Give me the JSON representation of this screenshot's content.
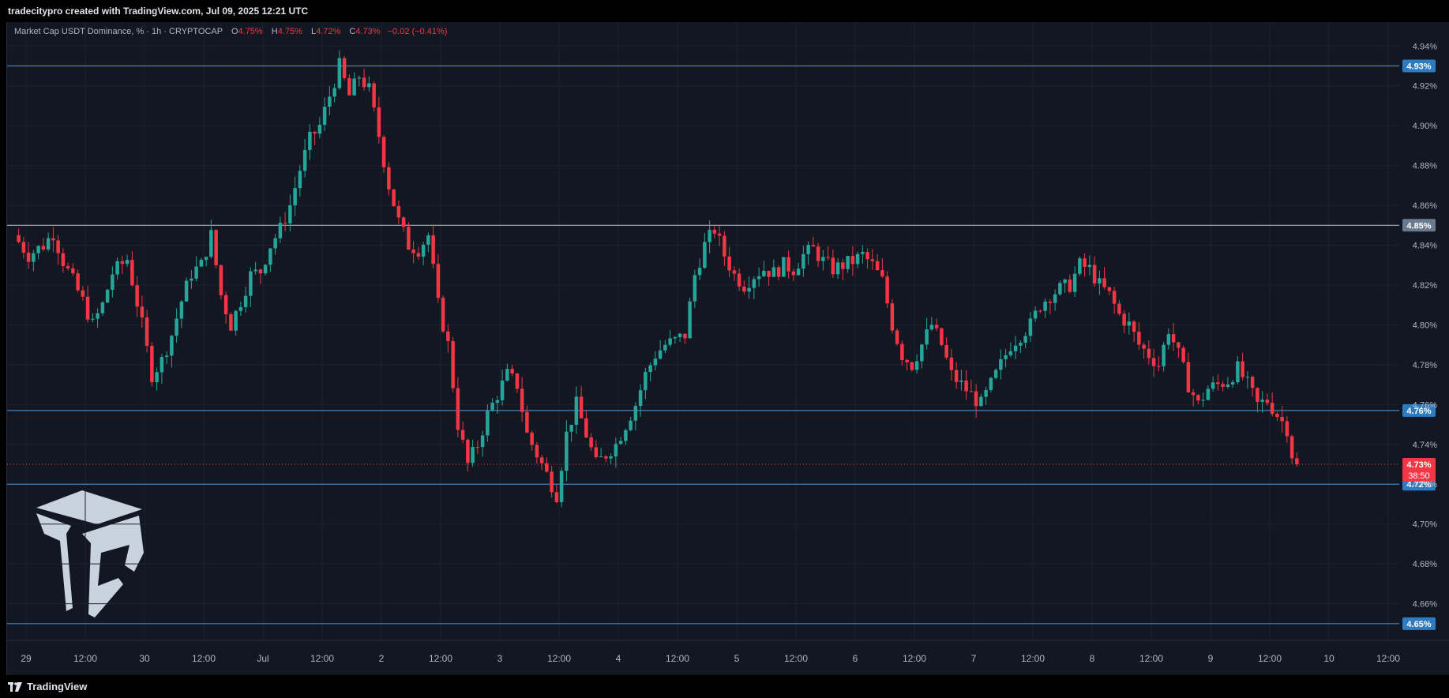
{
  "header": {
    "attribution": "tradecitypro created with TradingView.com, Jul 09, 2025 12:21 UTC"
  },
  "legend": {
    "title": "Market Cap USDT Dominance, % · 1h · CRYPTOCAP",
    "open_label": "O",
    "open": "4.75%",
    "high_label": "H",
    "high": "4.75%",
    "low_label": "L",
    "low": "4.72%",
    "close_label": "C",
    "close": "4.73%",
    "change": "−0.02 (−0.41%)"
  },
  "footer": {
    "brand": "TradingView"
  },
  "colors": {
    "background": "#131722",
    "up": "#26a69a",
    "down": "#f23645",
    "level_line": "#2962ff",
    "level_blue": "#3d84c6",
    "level_white": "#b2b5be",
    "text": "#b2b5be"
  },
  "chart_data": {
    "type": "candlestick",
    "ylim": [
      4.642,
      4.952
    ],
    "y_ticks": [
      "4.94%",
      "4.92%",
      "4.90%",
      "4.88%",
      "4.86%",
      "4.84%",
      "4.82%",
      "4.80%",
      "4.78%",
      "4.76%",
      "4.74%",
      "4.72%",
      "4.70%",
      "4.68%",
      "4.66%"
    ],
    "y_tick_values": [
      4.94,
      4.92,
      4.9,
      4.88,
      4.86,
      4.84,
      4.82,
      4.8,
      4.78,
      4.76,
      4.74,
      4.72,
      4.7,
      4.68,
      4.66
    ],
    "x_labels": [
      "29",
      "12:00",
      "30",
      "12:00",
      "Jul",
      "12:00",
      "2",
      "12:00",
      "3",
      "12:00",
      "4",
      "12:00",
      "5",
      "12:00",
      "6",
      "12:00",
      "7",
      "12:00",
      "8",
      "12:00",
      "9",
      "12:00",
      "10",
      "12:00"
    ],
    "x_label_hours": [
      0,
      12,
      24,
      36,
      48,
      60,
      72,
      84,
      96,
      108,
      120,
      132,
      144,
      156,
      168,
      180,
      192,
      204,
      216,
      228,
      240,
      252,
      264,
      276
    ],
    "levels": [
      {
        "value": 4.93,
        "label": "4.93%",
        "style": "blue"
      },
      {
        "value": 4.85,
        "label": "4.85%",
        "style": "white"
      },
      {
        "value": 4.757,
        "label": "4.76%",
        "style": "blue"
      },
      {
        "value": 4.72,
        "label": "4.72%",
        "style": "blue"
      },
      {
        "value": 4.65,
        "label": "4.65%",
        "style": "blue"
      }
    ],
    "current_price": {
      "value": 4.73,
      "label": "4.73%",
      "countdown": "38:50"
    },
    "price_path": [
      [
        -2,
        4.845
      ],
      [
        1,
        4.835
      ],
      [
        4,
        4.84
      ],
      [
        6,
        4.846
      ],
      [
        8,
        4.832
      ],
      [
        10,
        4.822
      ],
      [
        12,
        4.812
      ],
      [
        14,
        4.8
      ],
      [
        16,
        4.81
      ],
      [
        18,
        4.826
      ],
      [
        21,
        4.833
      ],
      [
        24,
        4.8
      ],
      [
        26,
        4.775
      ],
      [
        28,
        4.782
      ],
      [
        30,
        4.795
      ],
      [
        32,
        4.812
      ],
      [
        34,
        4.826
      ],
      [
        36,
        4.83
      ],
      [
        38,
        4.845
      ],
      [
        40,
        4.815
      ],
      [
        42,
        4.8
      ],
      [
        44,
        4.812
      ],
      [
        46,
        4.825
      ],
      [
        48,
        4.827
      ],
      [
        50,
        4.84
      ],
      [
        52,
        4.848
      ],
      [
        54,
        4.86
      ],
      [
        56,
        4.878
      ],
      [
        58,
        4.893
      ],
      [
        60,
        4.9
      ],
      [
        62,
        4.915
      ],
      [
        64,
        4.93
      ],
      [
        66,
        4.915
      ],
      [
        68,
        4.925
      ],
      [
        70,
        4.918
      ],
      [
        72,
        4.895
      ],
      [
        74,
        4.87
      ],
      [
        76,
        4.852
      ],
      [
        78,
        4.84
      ],
      [
        80,
        4.838
      ],
      [
        82,
        4.845
      ],
      [
        84,
        4.81
      ],
      [
        86,
        4.79
      ],
      [
        88,
        4.75
      ],
      [
        90,
        4.73
      ],
      [
        92,
        4.74
      ],
      [
        94,
        4.755
      ],
      [
        96,
        4.765
      ],
      [
        98,
        4.775
      ],
      [
        100,
        4.77
      ],
      [
        102,
        4.745
      ],
      [
        104,
        4.735
      ],
      [
        106,
        4.725
      ],
      [
        108,
        4.715
      ],
      [
        110,
        4.745
      ],
      [
        112,
        4.76
      ],
      [
        114,
        4.745
      ],
      [
        116,
        4.73
      ],
      [
        118,
        4.735
      ],
      [
        120,
        4.74
      ],
      [
        122,
        4.75
      ],
      [
        124,
        4.76
      ],
      [
        126,
        4.775
      ],
      [
        128,
        4.785
      ],
      [
        130,
        4.79
      ],
      [
        132,
        4.792
      ],
      [
        134,
        4.795
      ],
      [
        136,
        4.825
      ],
      [
        138,
        4.84
      ],
      [
        140,
        4.848
      ],
      [
        142,
        4.835
      ],
      [
        144,
        4.825
      ],
      [
        146,
        4.82
      ],
      [
        148,
        4.825
      ],
      [
        150,
        4.828
      ],
      [
        152,
        4.826
      ],
      [
        154,
        4.83
      ],
      [
        156,
        4.828
      ],
      [
        158,
        4.835
      ],
      [
        160,
        4.838
      ],
      [
        162,
        4.832
      ],
      [
        164,
        4.828
      ],
      [
        166,
        4.83
      ],
      [
        168,
        4.832
      ],
      [
        170,
        4.835
      ],
      [
        172,
        4.83
      ],
      [
        174,
        4.822
      ],
      [
        176,
        4.8
      ],
      [
        178,
        4.785
      ],
      [
        180,
        4.78
      ],
      [
        182,
        4.79
      ],
      [
        184,
        4.8
      ],
      [
        186,
        4.79
      ],
      [
        188,
        4.775
      ],
      [
        190,
        4.77
      ],
      [
        192,
        4.765
      ],
      [
        194,
        4.76
      ],
      [
        196,
        4.77
      ],
      [
        198,
        4.78
      ],
      [
        200,
        4.79
      ],
      [
        202,
        4.795
      ],
      [
        204,
        4.8
      ],
      [
        206,
        4.81
      ],
      [
        208,
        4.815
      ],
      [
        210,
        4.818
      ],
      [
        212,
        4.82
      ],
      [
        214,
        4.83
      ],
      [
        216,
        4.828
      ],
      [
        218,
        4.82
      ],
      [
        220,
        4.815
      ],
      [
        222,
        4.805
      ],
      [
        224,
        4.8
      ],
      [
        226,
        4.79
      ],
      [
        228,
        4.785
      ],
      [
        230,
        4.78
      ],
      [
        232,
        4.798
      ],
      [
        234,
        4.785
      ],
      [
        236,
        4.77
      ],
      [
        238,
        4.76
      ],
      [
        240,
        4.768
      ],
      [
        242,
        4.77
      ],
      [
        244,
        4.772
      ],
      [
        246,
        4.778
      ],
      [
        248,
        4.77
      ],
      [
        250,
        4.76
      ],
      [
        252,
        4.762
      ],
      [
        254,
        4.755
      ],
      [
        256,
        4.748
      ],
      [
        257,
        4.735
      ],
      [
        257.5,
        4.73
      ]
    ]
  }
}
